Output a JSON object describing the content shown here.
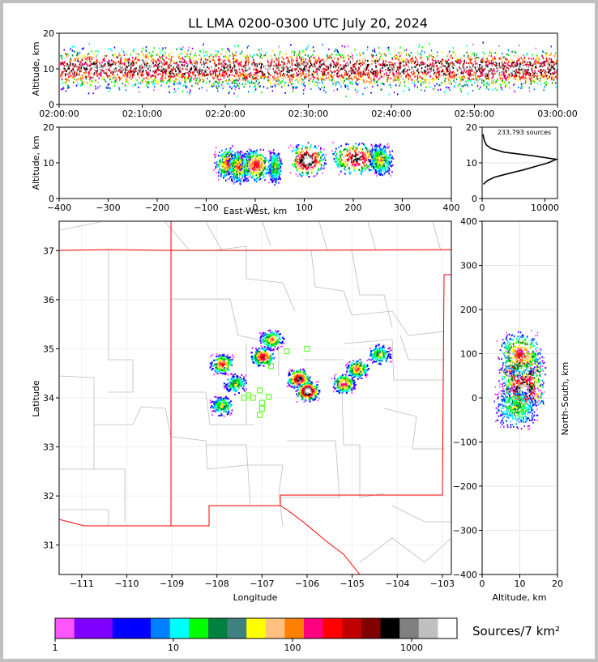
{
  "title": "LL LMA 0200-0300 UTC July 20, 2024",
  "chart_data": [
    {
      "type": "heatmap",
      "name": "altitude-time",
      "x_ticks": [
        "02:00:00",
        "02:10:00",
        "02:20:00",
        "02:30:00",
        "02:40:00",
        "02:50:00",
        "03:00:00"
      ],
      "y_ticks": [
        "0",
        "10",
        "20"
      ],
      "ylabel": "Altitude, km",
      "ylim": [
        0,
        20
      ]
    },
    {
      "type": "heatmap",
      "name": "altitude-eastwest",
      "x_ticks": [
        "−400",
        "−300",
        "−200",
        "−100",
        "0",
        "100",
        "200",
        "300",
        "400"
      ],
      "y_ticks": [
        "0",
        "10",
        "20"
      ],
      "xlabel": "East-West, km",
      "ylabel": "Altitude, km",
      "xlim": [
        -400,
        400
      ],
      "ylim": [
        0,
        20
      ]
    },
    {
      "type": "line",
      "name": "altitude-histogram",
      "annotation": "233,793 sources",
      "x_ticks": [
        "0",
        "10000"
      ],
      "y_ticks": [
        "0",
        "10",
        "20"
      ],
      "xlim": [
        0,
        12000
      ],
      "ylim": [
        0,
        20
      ],
      "profile": {
        "altitude": [
          4,
          5,
          6,
          7,
          8,
          9,
          10,
          11,
          12,
          13,
          14,
          15,
          16,
          17,
          18
        ],
        "count": [
          200,
          800,
          2000,
          4200,
          6500,
          8500,
          10500,
          11800,
          8000,
          3500,
          1500,
          700,
          400,
          250,
          150
        ]
      }
    },
    {
      "type": "heatmap",
      "name": "plan-view-map",
      "x_ticks": [
        "−111",
        "−110",
        "−109",
        "−108",
        "−107",
        "−106",
        "−105",
        "−104",
        "−103"
      ],
      "y_ticks": [
        "31",
        "32",
        "33",
        "34",
        "35",
        "36",
        "37"
      ],
      "xlabel": "Longitude",
      "ylabel": "Latitude",
      "xlim": [
        -111.5,
        -102.8
      ],
      "ylim": [
        30.4,
        37.6
      ],
      "source_clusters": [
        {
          "lon": -107.9,
          "lat": 34.7,
          "intensity": 0.6
        },
        {
          "lon": -107.6,
          "lat": 34.3,
          "intensity": 0.4
        },
        {
          "lon": -107.0,
          "lat": 34.85,
          "intensity": 0.7
        },
        {
          "lon": -106.8,
          "lat": 35.2,
          "intensity": 0.5
        },
        {
          "lon": -106.2,
          "lat": 34.4,
          "intensity": 0.8
        },
        {
          "lon": -106.0,
          "lat": 34.15,
          "intensity": 1.0
        },
        {
          "lon": -105.2,
          "lat": 34.3,
          "intensity": 0.6
        },
        {
          "lon": -104.9,
          "lat": 34.6,
          "intensity": 0.55
        },
        {
          "lon": -104.4,
          "lat": 34.9,
          "intensity": 0.4
        },
        {
          "lon": -107.9,
          "lat": 33.85,
          "intensity": 0.4
        }
      ],
      "stations": [
        {
          "lon": -107.3,
          "lat": 34.05
        },
        {
          "lon": -107.2,
          "lat": 34.0
        },
        {
          "lon": -107.05,
          "lat": 34.15
        },
        {
          "lon": -107.0,
          "lat": 33.9
        },
        {
          "lon": -107.05,
          "lat": 33.65
        },
        {
          "lon": -107.0,
          "lat": 33.78
        },
        {
          "lon": -106.85,
          "lat": 34.02
        },
        {
          "lon": -107.4,
          "lat": 34.0
        },
        {
          "lon": -106.45,
          "lat": 34.95
        },
        {
          "lon": -106.0,
          "lat": 35.0
        },
        {
          "lon": -106.8,
          "lat": 34.65
        }
      ]
    },
    {
      "type": "heatmap",
      "name": "northsouth-altitude",
      "x_ticks": [
        "0",
        "10",
        "20"
      ],
      "y_ticks": [
        "−400",
        "−300",
        "−200",
        "−100",
        "0",
        "100",
        "200",
        "300",
        "400"
      ],
      "xlabel": "Altitude, km",
      "ylabel": "North-South, km",
      "xlim": [
        0,
        20
      ],
      "ylim": [
        -400,
        400
      ]
    }
  ],
  "colorbar": {
    "label": "Sources/7 km²",
    "tick_labels": [
      "1",
      "10",
      "100",
      "1000"
    ],
    "colors": [
      "#ff55ff",
      "#8000ff",
      "#8000ff",
      "#0000ff",
      "#0000ff",
      "#0080ff",
      "#00ffff",
      "#00ff00",
      "#008040",
      "#408080",
      "#ffff00",
      "#ffc080",
      "#ff8000",
      "#ff0080",
      "#ff0000",
      "#c00000",
      "#800000",
      "#000000",
      "#808080",
      "#c0c0c0",
      "#ffffff"
    ]
  },
  "palette": [
    "#ff55ff",
    "#8000ff",
    "#0000ff",
    "#0080ff",
    "#00ffff",
    "#00ff00",
    "#008040",
    "#ffff00",
    "#ffc080",
    "#ff8000",
    "#ff0080",
    "#ff0000",
    "#c00000",
    "#000000",
    "#808080",
    "#c0c0c0",
    "#ffffff"
  ]
}
